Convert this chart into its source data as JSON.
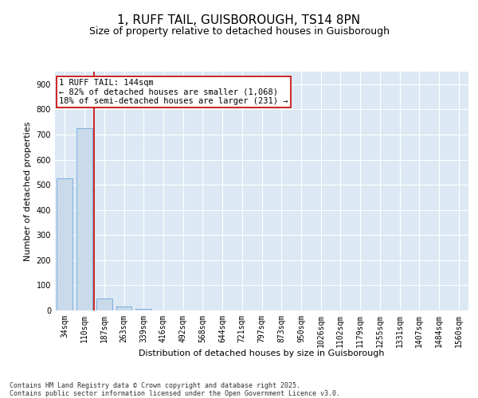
{
  "title": "1, RUFF TAIL, GUISBOROUGH, TS14 8PN",
  "subtitle": "Size of property relative to detached houses in Guisborough",
  "xlabel": "Distribution of detached houses by size in Guisborough",
  "ylabel": "Number of detached properties",
  "categories": [
    "34sqm",
    "110sqm",
    "187sqm",
    "263sqm",
    "339sqm",
    "416sqm",
    "492sqm",
    "568sqm",
    "644sqm",
    "721sqm",
    "797sqm",
    "873sqm",
    "950sqm",
    "1026sqm",
    "1102sqm",
    "1179sqm",
    "1255sqm",
    "1331sqm",
    "1407sqm",
    "1484sqm",
    "1560sqm"
  ],
  "values": [
    525,
    725,
    47,
    15,
    5,
    0,
    0,
    0,
    0,
    0,
    0,
    0,
    0,
    0,
    0,
    0,
    0,
    0,
    0,
    0,
    0
  ],
  "bar_color": "#c9daea",
  "bar_edge_color": "#5b9bd5",
  "vline_color": "#cc0000",
  "annotation_text": "1 RUFF TAIL: 144sqm\n← 82% of detached houses are smaller (1,068)\n18% of semi-detached houses are larger (231) →",
  "annotation_box_edge_color": "#cc0000",
  "ylim": [
    0,
    950
  ],
  "yticks": [
    0,
    100,
    200,
    300,
    400,
    500,
    600,
    700,
    800,
    900
  ],
  "bg_color": "#dce9f5",
  "grid_color": "#ffffff",
  "footer": "Contains HM Land Registry data © Crown copyright and database right 2025.\nContains public sector information licensed under the Open Government Licence v3.0.",
  "title_fontsize": 11,
  "subtitle_fontsize": 9,
  "label_fontsize": 8,
  "tick_fontsize": 7,
  "annotation_fontsize": 7.5,
  "footer_fontsize": 6
}
